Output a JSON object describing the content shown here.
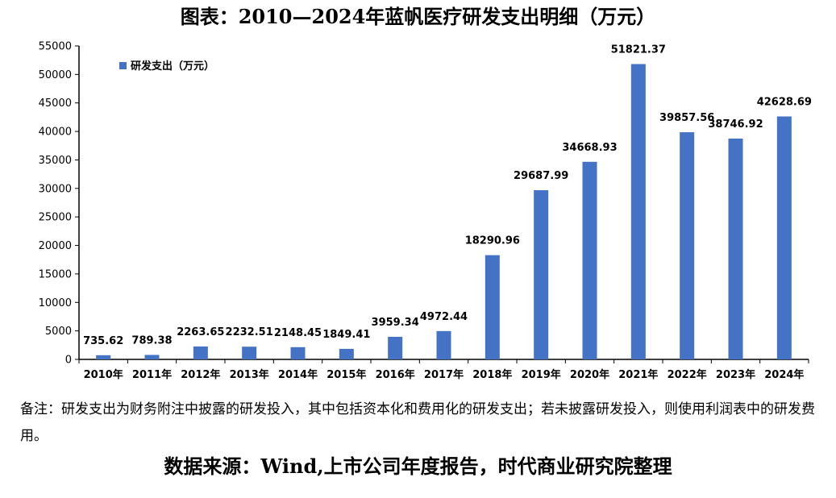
{
  "title": "图表：2010—2024年蓝帆医疗研发支出明细（万元）",
  "note": "备注：研发支出为财务附注中披露的研发投入，其中包括资本化和费用化的研发支出；若未披露研发投入，则使用利润表中的研发费用。",
  "source": "数据来源：Wind,上市公司年度报告，时代商业研究院整理",
  "colors": {
    "bar": "#4472C4",
    "axis": "#000000"
  },
  "chart_data": {
    "type": "bar",
    "title": "图表：2010—2024年蓝帆医疗研发支出明细（万元）",
    "xlabel": "",
    "ylabel": "",
    "ylim": [
      0,
      55000
    ],
    "ytick_step": 5000,
    "grid": false,
    "legend_position": "top-left",
    "categories": [
      "2010年",
      "2011年",
      "2012年",
      "2013年",
      "2014年",
      "2015年",
      "2016年",
      "2017年",
      "2018年",
      "2019年",
      "2020年",
      "2021年",
      "2022年",
      "2023年",
      "2024年"
    ],
    "series": [
      {
        "name": "研发支出（万元）",
        "values": [
          735.62,
          789.38,
          2263.65,
          2232.51,
          2148.45,
          1849.41,
          3959.34,
          4972.44,
          18290.96,
          29687.99,
          34668.93,
          51821.37,
          39857.56,
          38746.92,
          42628.69
        ],
        "labels": [
          "735.62",
          "789.38",
          "2263.65",
          "2232.51",
          "2148.45",
          "1849.41",
          "3959.34",
          "4972.44",
          "18290.96",
          "29687.99",
          "34668.93",
          "51821.37",
          "39857.56",
          "38746.92",
          "42628.69"
        ]
      }
    ]
  }
}
